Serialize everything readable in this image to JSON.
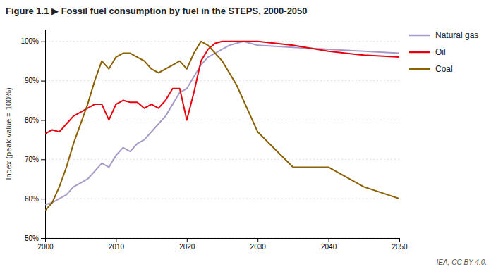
{
  "chart_data": {
    "type": "line",
    "title": "Figure 1.1 ▶ Fossil fuel consumption by fuel in the STEPS, 2000-2050",
    "ylabel": "Index (peak value = 100%)",
    "annotations": [
      "IEA, CC BY 4.0."
    ],
    "x": [
      2000,
      2001,
      2002,
      2003,
      2004,
      2005,
      2006,
      2007,
      2008,
      2009,
      2010,
      2011,
      2012,
      2013,
      2014,
      2015,
      2016,
      2017,
      2018,
      2019,
      2020,
      2021,
      2022,
      2023,
      2024,
      2025,
      2026,
      2027,
      2028,
      2029,
      2030,
      2035,
      2040,
      2045,
      2050
    ],
    "series": [
      {
        "name": "Natural gas",
        "color": "#a89ac8",
        "values": [
          58.5,
          59,
          60,
          61,
          63,
          64,
          65,
          67,
          69,
          68,
          71,
          73,
          72,
          74,
          75,
          77,
          79,
          81,
          84,
          87,
          88,
          91,
          94,
          96,
          97,
          98,
          99,
          99.5,
          100,
          99.5,
          99,
          98.5,
          98,
          97.5,
          97
        ]
      },
      {
        "name": "Oil",
        "color": "#e8000d",
        "values": [
          76.5,
          77.5,
          77,
          79,
          81,
          82,
          83,
          84,
          84,
          80,
          84,
          85,
          84.5,
          84.5,
          83,
          84,
          83,
          85,
          88,
          88,
          80,
          87,
          95,
          98,
          99.5,
          100,
          100,
          100,
          100,
          100,
          100,
          99,
          97.5,
          96.5,
          96
        ]
      },
      {
        "name": "Coal",
        "color": "#8B6000",
        "values": [
          57,
          59,
          63,
          68,
          74,
          79,
          84,
          90,
          95,
          93,
          96,
          97,
          97,
          96,
          95,
          93,
          92,
          93,
          94,
          95,
          93,
          97,
          100,
          99,
          97,
          95,
          92,
          89,
          85,
          81,
          77,
          68,
          68,
          63,
          60
        ]
      }
    ],
    "xlim": [
      2000,
      2050
    ],
    "xticks": [
      2000,
      2010,
      2020,
      2030,
      2040,
      2050
    ],
    "ylim": [
      50,
      103
    ],
    "yticks": [
      {
        "value": 50,
        "label": "50%"
      },
      {
        "value": 60,
        "label": "60%"
      },
      {
        "value": 70,
        "label": "70%"
      },
      {
        "value": 80,
        "label": "80%"
      },
      {
        "value": 90,
        "label": "90%"
      },
      {
        "value": 100,
        "label": "100%"
      }
    ],
    "grid": true,
    "legend": "right"
  }
}
